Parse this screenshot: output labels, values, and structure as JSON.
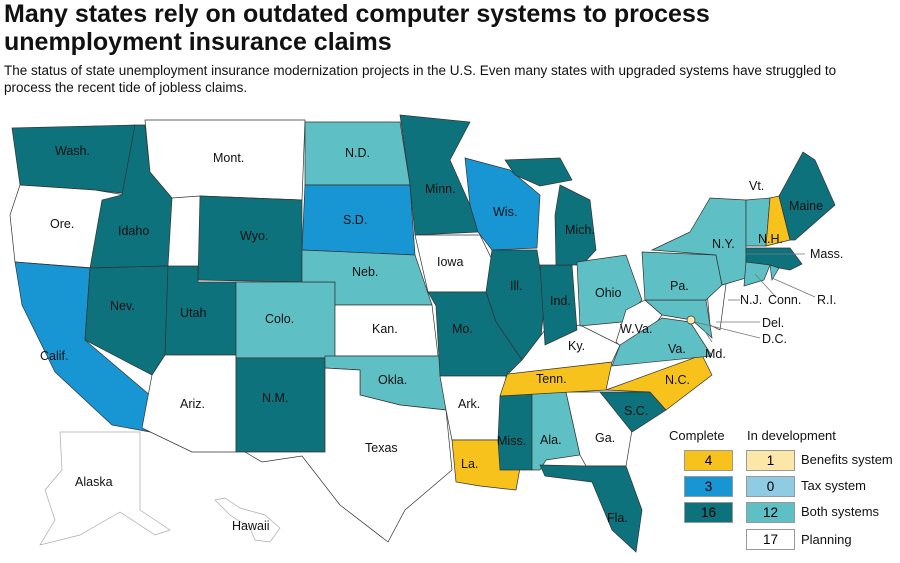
{
  "title": "Many states rely on outdated computer systems to process unemployment insurance claims",
  "subtitle": "The status of state unemployment insurance modernization projects in the U.S. Even many states with upgraded systems have struggled to process the recent tide of jobless claims.",
  "colors": {
    "complete_benefits": "#f7c21b",
    "complete_tax": "#1896d4",
    "complete_both": "#0e727c",
    "dev_benefits": "#fce7a8",
    "dev_tax": "#8fcbe3",
    "dev_both": "#5ebfc4",
    "planning": "#ffffff"
  },
  "states": {
    "wa": "Wash.",
    "or": "Ore.",
    "ca": "Calif.",
    "id": "Idaho",
    "nv": "Nev.",
    "mt": "Mont.",
    "wy": "Wyo.",
    "ut": "Utah",
    "az": "Ariz.",
    "co": "Colo.",
    "nm": "N.M.",
    "nd": "N.D.",
    "sd": "S.D.",
    "ne": "Neb.",
    "ks": "Kan.",
    "ok": "Okla.",
    "tx": "Texas",
    "mn": "Minn.",
    "ia": "Iowa",
    "wi": "Wis.",
    "il": "Ill.",
    "mo": "Mo.",
    "ar": "Ark.",
    "la": "La.",
    "ms": "Miss.",
    "al": "Ala.",
    "ga": "Ga.",
    "fl": "Fla.",
    "sc": "S.C.",
    "nc": "N.C.",
    "tn": "Tenn.",
    "ky": "Ky.",
    "in": "Ind.",
    "mi": "Mich.",
    "oh": "Ohio",
    "wv": "W.Va.",
    "va": "Va.",
    "md": "Md.",
    "de": "Del.",
    "dc": "D.C.",
    "nj": "N.J.",
    "pa": "Pa.",
    "ny": "N.Y.",
    "vt": "Vt.",
    "nh": "N.H.",
    "me": "Maine",
    "ma": "Mass.",
    "ct": "Conn.",
    "ri": "R.I.",
    "ak": "Alaska",
    "hi": "Hawaii"
  },
  "legend": {
    "complete_heading": "Complete",
    "dev_heading": "In development",
    "complete": [
      {
        "value": "4",
        "color": "#f7c21b"
      },
      {
        "value": "3",
        "color": "#1896d4"
      },
      {
        "value": "16",
        "color": "#0e727c"
      }
    ],
    "development": [
      {
        "value": "1",
        "label": "Benefits system",
        "color": "#fce7a8"
      },
      {
        "value": "0",
        "label": "Tax system",
        "color": "#8fcbe3"
      },
      {
        "value": "12",
        "label": "Both systems",
        "color": "#5ebfc4"
      },
      {
        "value": "17",
        "label": "Planning",
        "color": "#ffffff"
      }
    ]
  }
}
